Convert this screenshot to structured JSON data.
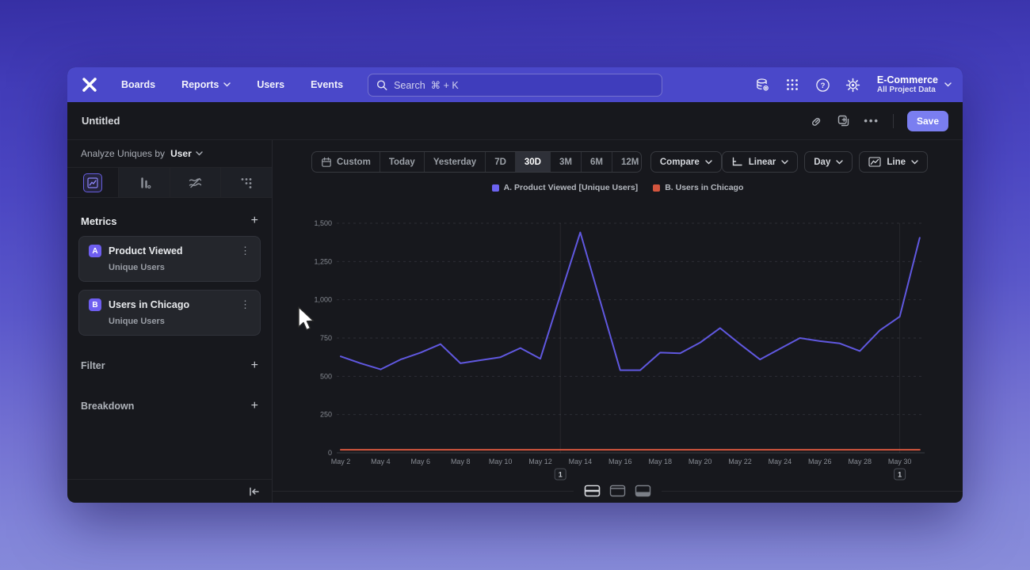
{
  "nav": {
    "links": [
      "Boards",
      "Reports",
      "Users",
      "Events"
    ],
    "search_placeholder": "Search  ⌘ + K",
    "project_name": "E-Commerce",
    "project_subtitle": "All Project Data"
  },
  "header": {
    "title": "Untitled",
    "more_label": "•••",
    "save_label": "Save"
  },
  "sidebar": {
    "analyze_prefix": "Analyze Uniques by",
    "analyze_value": "User",
    "metrics_title": "Metrics",
    "metrics": [
      {
        "badge": "A",
        "name": "Product Viewed",
        "subtitle": "Unique Users",
        "kebab": "⋮"
      },
      {
        "badge": "B",
        "name": "Users in Chicago",
        "subtitle": "Unique Users",
        "kebab": "⋮"
      }
    ],
    "filter_label": "Filter",
    "breakdown_label": "Breakdown",
    "plus": "+"
  },
  "controls": {
    "ranges": [
      "Custom",
      "Today",
      "Yesterday",
      "7D",
      "30D",
      "3M",
      "6M",
      "12M"
    ],
    "selected_range": "30D",
    "compare_label": "Compare",
    "scale_label": "Linear",
    "interval_label": "Day",
    "chart_type_label": "Line"
  },
  "chart_data": {
    "type": "line",
    "title": "",
    "x": [
      "May 2",
      "May 3",
      "May 4",
      "May 5",
      "May 6",
      "May 7",
      "May 8",
      "May 9",
      "May 10",
      "May 11",
      "May 12",
      "May 13",
      "May 14",
      "May 15",
      "May 16",
      "May 17",
      "May 18",
      "May 19",
      "May 20",
      "May 21",
      "May 22",
      "May 23",
      "May 24",
      "May 25",
      "May 26",
      "May 27",
      "May 28",
      "May 29",
      "May 30",
      "May 31"
    ],
    "xtick_every": 2,
    "ylim": [
      0,
      1500
    ],
    "yticks": [
      0,
      250,
      500,
      750,
      1000,
      1250,
      1500
    ],
    "ytick_labels": [
      "0",
      "250",
      "500",
      "750",
      "1,000",
      "1,250",
      "1,500"
    ],
    "grid": "horizontal-dashed",
    "legend_position": "top-center",
    "series": [
      {
        "name": "A. Product Viewed [Unique Users]",
        "color": "#6058e0",
        "values": [
          630,
          585,
          545,
          610,
          655,
          710,
          585,
          605,
          625,
          685,
          615,
          1030,
          1440,
          990,
          540,
          540,
          655,
          650,
          720,
          815,
          710,
          610,
          680,
          750,
          730,
          715,
          665,
          800,
          890,
          1405
        ]
      },
      {
        "name": "B. Users in Chicago",
        "color": "#d4553e",
        "values": [
          20,
          20,
          20,
          20,
          20,
          20,
          20,
          20,
          20,
          20,
          20,
          20,
          20,
          20,
          20,
          20,
          20,
          20,
          20,
          20,
          20,
          20,
          20,
          20,
          20,
          20,
          20,
          20,
          20,
          20
        ]
      }
    ],
    "annotations": [
      {
        "label": "1",
        "date": "May 13"
      },
      {
        "label": "1",
        "date": "May 30"
      }
    ]
  }
}
